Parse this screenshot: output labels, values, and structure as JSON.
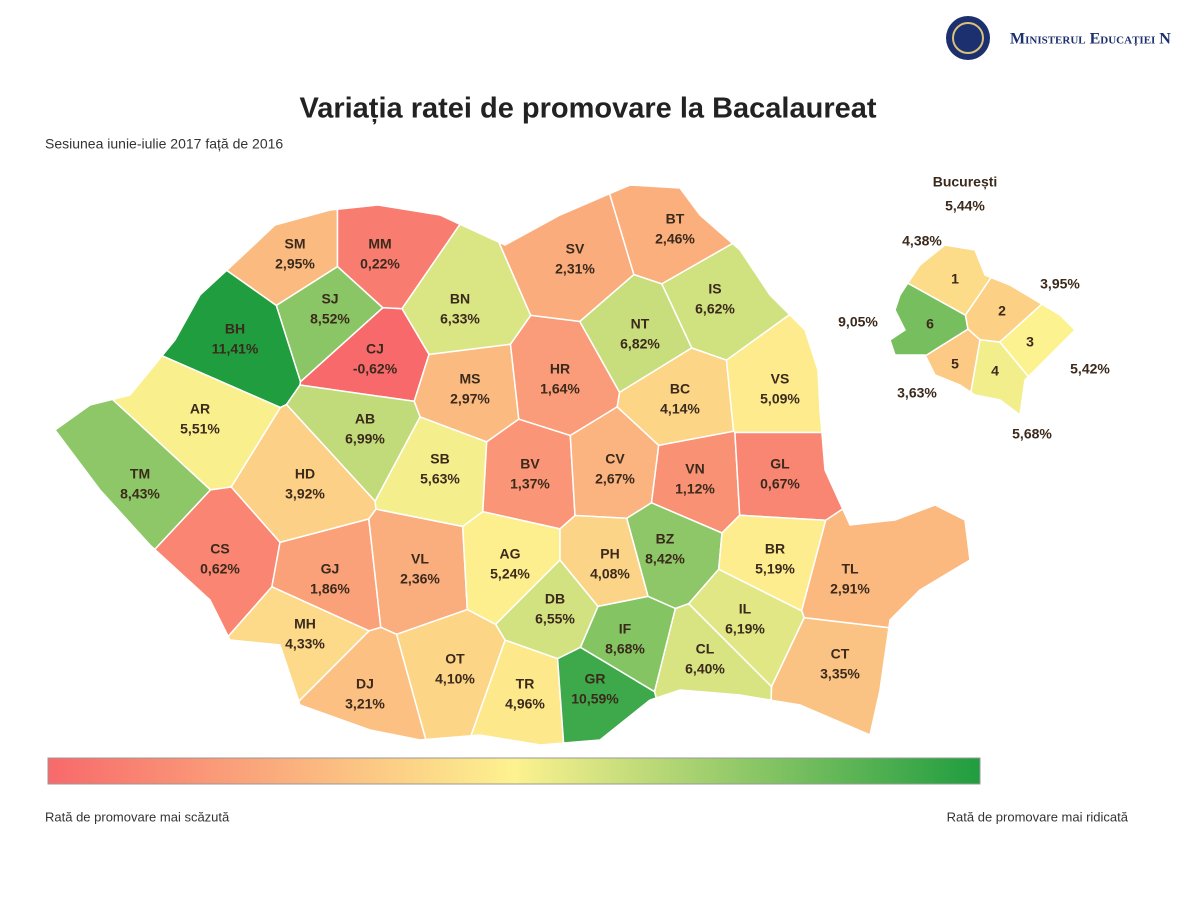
{
  "header": {
    "ministry": "Ministerul Educației N"
  },
  "title": "Variația ratei de promovare la Bacalaureat",
  "subtitle": "Sesiunea iunie-iulie 2017 față de 2016",
  "counties": [
    {
      "code": "SM",
      "value": 2.95,
      "label": "2,95%"
    },
    {
      "code": "MM",
      "value": 0.22,
      "label": "0,22%"
    },
    {
      "code": "SJ",
      "value": 8.52,
      "label": "8,52%"
    },
    {
      "code": "BN",
      "value": 6.33,
      "label": "6,33%"
    },
    {
      "code": "SV",
      "value": 2.31,
      "label": "2,31%"
    },
    {
      "code": "BT",
      "value": 2.46,
      "label": "2,46%"
    },
    {
      "code": "IS",
      "value": 6.62,
      "label": "6,62%"
    },
    {
      "code": "BH",
      "value": 11.41,
      "label": "11,41%"
    },
    {
      "code": "CJ",
      "value": -0.62,
      "label": "-0,62%"
    },
    {
      "code": "MS",
      "value": 2.97,
      "label": "2,97%"
    },
    {
      "code": "HR",
      "value": 1.64,
      "label": "1,64%"
    },
    {
      "code": "NT",
      "value": 6.82,
      "label": "6,82%"
    },
    {
      "code": "BC",
      "value": 4.14,
      "label": "4,14%"
    },
    {
      "code": "VS",
      "value": 5.09,
      "label": "5,09%"
    },
    {
      "code": "AR",
      "value": 5.51,
      "label": "5,51%"
    },
    {
      "code": "AB",
      "value": 6.99,
      "label": "6,99%"
    },
    {
      "code": "TM",
      "value": 8.43,
      "label": "8,43%"
    },
    {
      "code": "HD",
      "value": 3.92,
      "label": "3,92%"
    },
    {
      "code": "SB",
      "value": 5.63,
      "label": "5,63%"
    },
    {
      "code": "BV",
      "value": 1.37,
      "label": "1,37%"
    },
    {
      "code": "CV",
      "value": 2.67,
      "label": "2,67%"
    },
    {
      "code": "VN",
      "value": 1.12,
      "label": "1,12%"
    },
    {
      "code": "GL",
      "value": 0.67,
      "label": "0,67%"
    },
    {
      "code": "CS",
      "value": 0.62,
      "label": "0,62%"
    },
    {
      "code": "GJ",
      "value": 1.86,
      "label": "1,86%"
    },
    {
      "code": "VL",
      "value": 2.36,
      "label": "2,36%"
    },
    {
      "code": "AG",
      "value": 5.24,
      "label": "5,24%"
    },
    {
      "code": "DB",
      "value": 6.55,
      "label": "6,55%"
    },
    {
      "code": "PH",
      "value": 4.08,
      "label": "4,08%"
    },
    {
      "code": "BZ",
      "value": 8.42,
      "label": "8,42%"
    },
    {
      "code": "BR",
      "value": 5.19,
      "label": "5,19%"
    },
    {
      "code": "TL",
      "value": 2.91,
      "label": "2,91%"
    },
    {
      "code": "MH",
      "value": 4.33,
      "label": "4,33%"
    },
    {
      "code": "DJ",
      "value": 3.21,
      "label": "3,21%"
    },
    {
      "code": "OT",
      "value": 4.1,
      "label": "4,10%"
    },
    {
      "code": "TR",
      "value": 4.96,
      "label": "4,96%"
    },
    {
      "code": "GR",
      "value": 10.59,
      "label": "10,59%"
    },
    {
      "code": "IF",
      "value": 8.68,
      "label": "8,68%"
    },
    {
      "code": "CL",
      "value": 6.4,
      "label": "6,40%"
    },
    {
      "code": "IL",
      "value": 6.19,
      "label": "6,19%"
    },
    {
      "code": "CT",
      "value": 3.35,
      "label": "3,35%"
    }
  ],
  "bucharest": {
    "name": "București",
    "label": "5,44%",
    "sectors": [
      {
        "name": "1",
        "value": 4.38,
        "label": "4,38%"
      },
      {
        "name": "2",
        "value": 3.95,
        "label": "3,95%"
      },
      {
        "name": "3",
        "value": 5.42,
        "label": "5,42%"
      },
      {
        "name": "4",
        "value": 5.68,
        "label": "5,68%"
      },
      {
        "name": "5",
        "value": 3.63,
        "label": "3,63%"
      },
      {
        "name": "6",
        "value": 9.05,
        "label": "9,05%"
      }
    ]
  },
  "legend": {
    "colors": [
      "#f8696b",
      "#fdf28f",
      "#1f9d3f"
    ],
    "low": "Rată de promovare mai scăzută",
    "high": "Rată de promovare mai ridicată"
  }
}
